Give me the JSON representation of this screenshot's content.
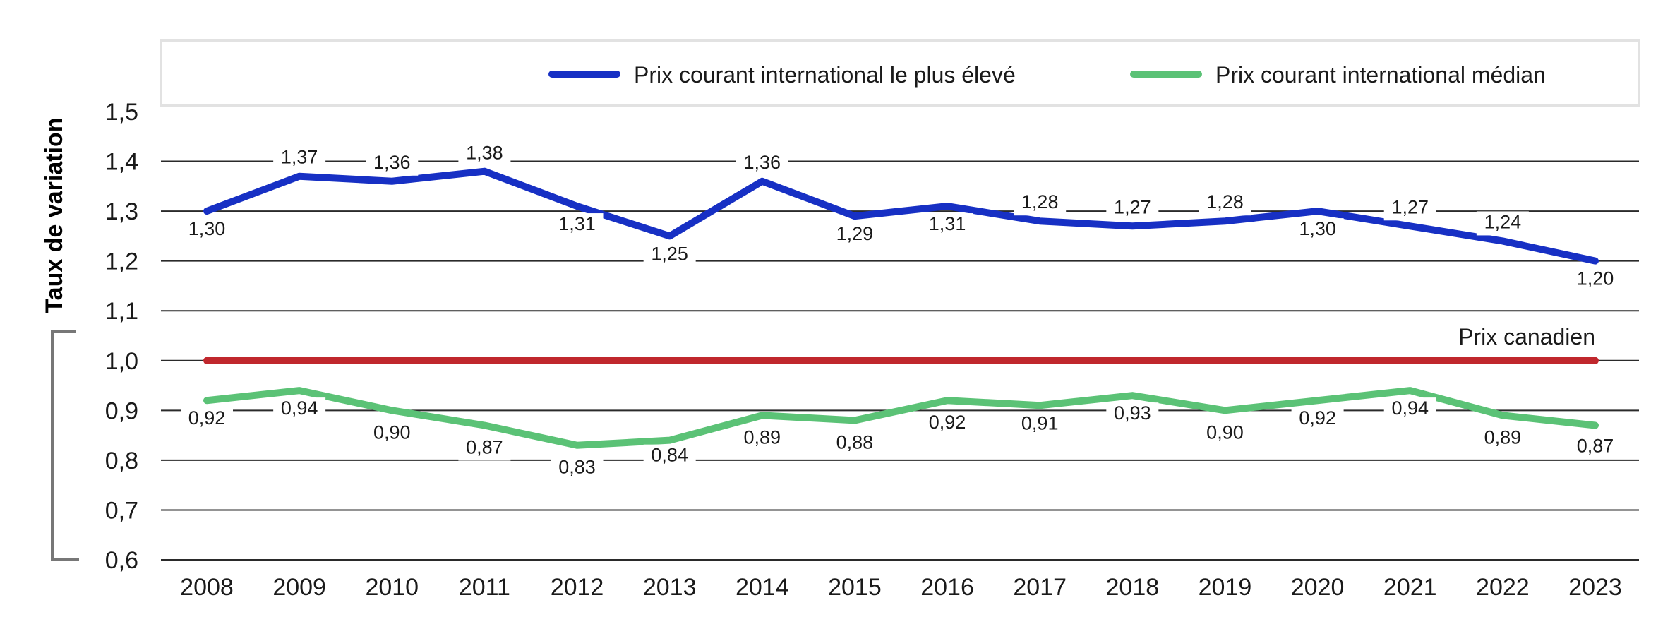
{
  "chart_data": {
    "type": "line",
    "ylabel": "Taux de variation",
    "ylim": [
      0.6,
      1.5
    ],
    "ytick_labels": [
      "0,6",
      "0,7",
      "0,8",
      "0,9",
      "1,0",
      "1,1",
      "1,2",
      "1,3",
      "1,4",
      "1,5"
    ],
    "categories": [
      "2008",
      "2009",
      "2010",
      "2011",
      "2012",
      "2013",
      "2014",
      "2015",
      "2016",
      "2017",
      "2018",
      "2019",
      "2020",
      "2021",
      "2022",
      "2023"
    ],
    "grid": "horizontal",
    "legend_position": "top-right",
    "series": [
      {
        "name": "Prix courant international le plus élevé",
        "color": "#1730c4",
        "values": [
          1.3,
          1.37,
          1.36,
          1.38,
          1.31,
          1.25,
          1.36,
          1.29,
          1.31,
          1.28,
          1.27,
          1.28,
          1.3,
          1.27,
          1.24,
          1.2
        ],
        "labels": [
          "1,30",
          "1,37",
          "1,36",
          "1,38",
          "1,31",
          "1,25",
          "1,36",
          "1,29",
          "1,31",
          "1,28",
          "1,27",
          "1,28",
          "1,30",
          "1,27",
          "1,24",
          "1,20"
        ]
      },
      {
        "name": "Prix courant international médian",
        "color": "#5bc276",
        "values": [
          0.92,
          0.94,
          0.9,
          0.87,
          0.83,
          0.84,
          0.89,
          0.88,
          0.92,
          0.91,
          0.93,
          0.9,
          0.92,
          0.94,
          0.89,
          0.87
        ],
        "labels": [
          "0,92",
          "0,94",
          "0,90",
          "0,87",
          "0,83",
          "0,84",
          "0,89",
          "0,88",
          "0,92",
          "0,91",
          "0,93",
          "0,90",
          "0,92",
          "0,94",
          "0,89",
          "0,87"
        ]
      }
    ],
    "reference_line": {
      "label": "Prix canadien",
      "value": 1.0,
      "color": "#c0272d"
    }
  }
}
